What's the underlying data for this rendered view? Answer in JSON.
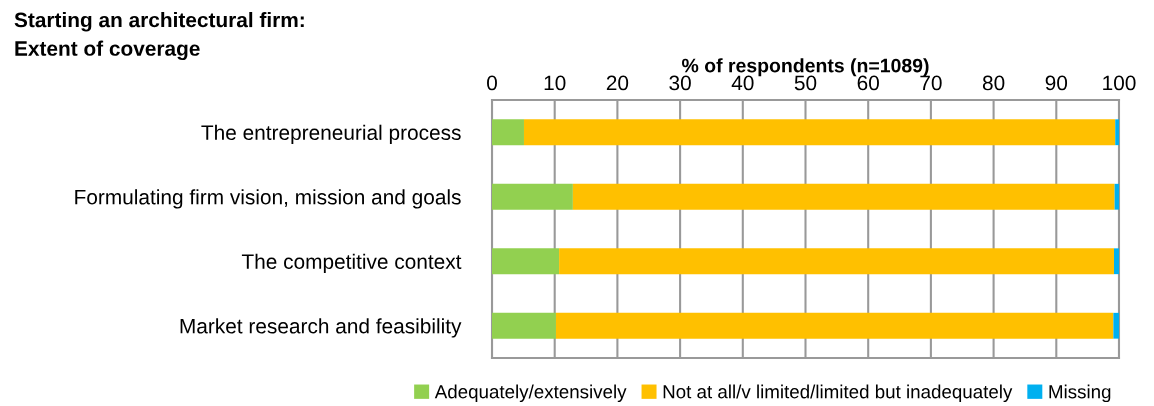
{
  "chart_data": {
    "type": "bar",
    "orientation": "horizontal",
    "stacked": true,
    "title": "Starting an architectural firm:\nExtent of coverage",
    "xlabel": "% of respondents (n=1089)",
    "categories": [
      "The entrepreneurial process",
      "Formulating firm vision, mission and goals",
      "The competitive context",
      "Market research and feasibility"
    ],
    "series": [
      {
        "name": "Adequately/extensively",
        "color": "#92d050",
        "values": [
          5.1,
          12.9,
          10.7,
          10.2
        ]
      },
      {
        "name": "Not at all/v limited/limited but inadequately",
        "color": "#ffc000",
        "values": [
          94.3,
          86.4,
          88.5,
          88.9
        ]
      },
      {
        "name": "Missing",
        "color": "#00b0f0",
        "values": [
          0.6,
          0.7,
          0.8,
          0.9
        ]
      }
    ],
    "xlim": [
      0,
      100
    ],
    "xticks": [
      0,
      10,
      20,
      30,
      40,
      50,
      60,
      70,
      80,
      90,
      100
    ],
    "grid": "x",
    "legend": "bottom"
  }
}
